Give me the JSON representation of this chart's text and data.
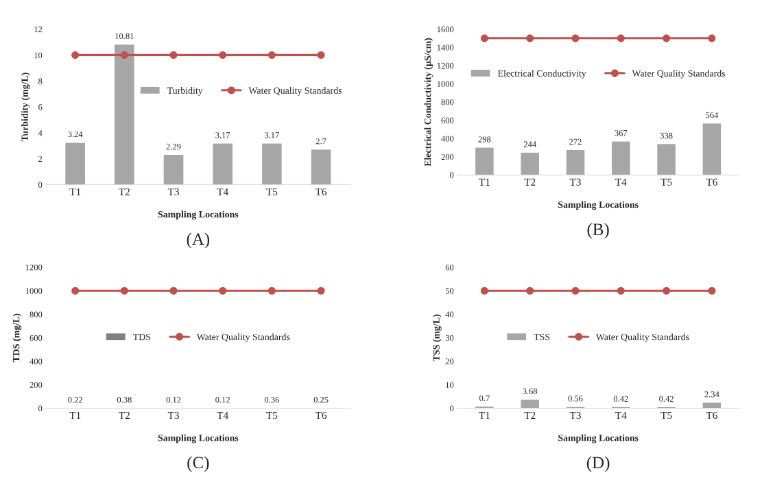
{
  "chart_data": [
    {
      "type": "bar",
      "categories": [
        "T1",
        "T2",
        "T3",
        "T4",
        "T5",
        "T6"
      ],
      "xlabel": "Sampling Locations",
      "ylabel": "Turbidity (mg/L)",
      "ylim": [
        0,
        12
      ],
      "yticks": [
        0,
        2,
        4,
        6,
        8,
        10,
        12
      ],
      "legend": "right",
      "annotations": [
        "(A)"
      ],
      "series": [
        {
          "name": "Turbidity",
          "color": "#a6a6a6",
          "values": [
            3.24,
            10.81,
            2.29,
            3.17,
            3.17,
            2.7
          ],
          "value_labels": [
            "3.24",
            "10.81",
            "2.29",
            "3.17",
            "3.17",
            "2.7"
          ]
        },
        {
          "name": "Water Quality Standards",
          "type": "line",
          "color": "#c0504d",
          "marker": "circle",
          "values": [
            10,
            10,
            10,
            10,
            10,
            10
          ]
        }
      ]
    },
    {
      "type": "bar",
      "categories": [
        "T1",
        "T2",
        "T3",
        "T4",
        "T5",
        "T6"
      ],
      "xlabel": "Sampling Locations",
      "ylabel": "Electrical Conductivity (µS/cm)",
      "ylim": [
        0,
        1600
      ],
      "yticks": [
        0,
        200,
        400,
        600,
        800,
        1000,
        1200,
        1400,
        1600
      ],
      "legend": "top",
      "annotations": [
        "(B)"
      ],
      "series": [
        {
          "name": "Electrical Conductivity",
          "color": "#a6a6a6",
          "values": [
            298,
            244,
            272,
            367,
            338,
            564
          ],
          "value_labels": [
            "298",
            "244",
            "272",
            "367",
            "338",
            "564"
          ]
        },
        {
          "name": "Water Quality Standards",
          "type": "line",
          "color": "#c0504d",
          "marker": "circle",
          "values": [
            1500,
            1500,
            1500,
            1500,
            1500,
            1500
          ]
        }
      ]
    },
    {
      "type": "bar",
      "categories": [
        "T1",
        "T2",
        "T3",
        "T4",
        "T5",
        "T6"
      ],
      "xlabel": "Sampling Locations",
      "ylabel": "TDS (mg/L)",
      "ylim": [
        0,
        1200
      ],
      "yticks": [
        0,
        200,
        400,
        600,
        800,
        1000,
        1200
      ],
      "legend": "center",
      "annotations": [
        "(C)"
      ],
      "series": [
        {
          "name": "TDS",
          "color": "#808080",
          "values": [
            0.22,
            0.38,
            0.12,
            0.12,
            0.36,
            0.25
          ],
          "value_labels": [
            "0.22",
            "0.38",
            "0.12",
            "0.12",
            "0.36",
            "0.25"
          ]
        },
        {
          "name": "Water Quality Standards",
          "type": "line",
          "color": "#c0504d",
          "marker": "circle",
          "values": [
            1000,
            1000,
            1000,
            1000,
            1000,
            1000
          ]
        }
      ]
    },
    {
      "type": "bar",
      "categories": [
        "T1",
        "T2",
        "T3",
        "T4",
        "T5",
        "T6"
      ],
      "xlabel": "Sampling Locations",
      "ylabel": "TSS (mg/L)",
      "ylim": [
        0,
        60
      ],
      "yticks": [
        0,
        10,
        20,
        30,
        40,
        50,
        60
      ],
      "legend": "center",
      "annotations": [
        "(D)"
      ],
      "series": [
        {
          "name": "TSS",
          "color": "#a6a6a6",
          "values": [
            0.7,
            3.68,
            0.56,
            0.42,
            0.42,
            2.34
          ],
          "value_labels": [
            "0.7",
            "3.68",
            "0.56",
            "0.42",
            "0.42",
            "2.34"
          ]
        },
        {
          "name": "Water Quality Standards",
          "type": "line",
          "color": "#c0504d",
          "marker": "circle",
          "values": [
            50,
            50,
            50,
            50,
            50,
            50
          ]
        }
      ]
    }
  ]
}
